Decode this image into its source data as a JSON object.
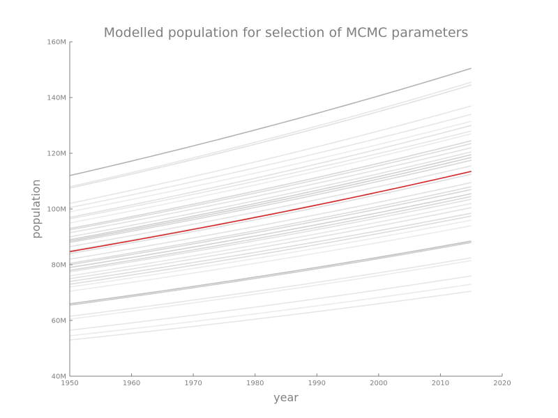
{
  "chart_data": {
    "type": "line",
    "title": "Modelled population for selection of MCMC parameters",
    "xlabel": "year",
    "ylabel": "population",
    "xlim": [
      1950,
      2020
    ],
    "ylim": [
      40000000,
      160000000
    ],
    "x_ticks": [
      "1950",
      "1960",
      "1970",
      "1980",
      "1990",
      "2000",
      "2010",
      "2020"
    ],
    "y_ticks": [
      "40M",
      "60M",
      "80M",
      "100M",
      "120M",
      "140M",
      "160M"
    ],
    "x_start": 1950,
    "x_end": 2015,
    "grid": false,
    "highlight_color": "#d62728",
    "series_color": "#9a9a9a",
    "series": [
      {
        "start": 112.0,
        "end": 150.5,
        "opacity": 0.75
      },
      {
        "start": 108.0,
        "end": 145.5,
        "opacity": 0.25
      },
      {
        "start": 107.5,
        "end": 144.5,
        "opacity": 0.3
      },
      {
        "start": 102.0,
        "end": 137.0,
        "opacity": 0.25
      },
      {
        "start": 100.5,
        "end": 134.0,
        "opacity": 0.25
      },
      {
        "start": 99.0,
        "end": 131.5,
        "opacity": 0.2
      },
      {
        "start": 97.0,
        "end": 130.0,
        "opacity": 0.3
      },
      {
        "start": 96.5,
        "end": 128.0,
        "opacity": 0.25
      },
      {
        "start": 95.0,
        "end": 127.0,
        "opacity": 0.2
      },
      {
        "start": 93.0,
        "end": 124.5,
        "opacity": 0.4
      },
      {
        "start": 92.5,
        "end": 123.5,
        "opacity": 0.35
      },
      {
        "start": 91.5,
        "end": 122.0,
        "opacity": 0.3
      },
      {
        "start": 90.0,
        "end": 120.5,
        "opacity": 0.3
      },
      {
        "start": 89.0,
        "end": 119.5,
        "opacity": 0.45
      },
      {
        "start": 88.5,
        "end": 118.5,
        "opacity": 0.45
      },
      {
        "start": 88.0,
        "end": 117.5,
        "opacity": 0.4
      },
      {
        "start": 86.5,
        "end": 115.5,
        "opacity": 0.3
      },
      {
        "start": 85.0,
        "end": 113.5,
        "opacity": 0.3
      },
      {
        "start": 84.0,
        "end": 112.5,
        "opacity": 0.35
      },
      {
        "start": 82.0,
        "end": 109.5,
        "opacity": 0.3
      },
      {
        "start": 80.5,
        "end": 108.0,
        "opacity": 0.35
      },
      {
        "start": 80.0,
        "end": 107.0,
        "opacity": 0.4
      },
      {
        "start": 79.0,
        "end": 105.5,
        "opacity": 0.45
      },
      {
        "start": 78.0,
        "end": 104.5,
        "opacity": 0.4
      },
      {
        "start": 77.5,
        "end": 103.5,
        "opacity": 0.3
      },
      {
        "start": 76.0,
        "end": 102.0,
        "opacity": 0.25
      },
      {
        "start": 75.0,
        "end": 100.5,
        "opacity": 0.3
      },
      {
        "start": 74.0,
        "end": 98.5,
        "opacity": 0.35
      },
      {
        "start": 73.0,
        "end": 97.5,
        "opacity": 0.35
      },
      {
        "start": 72.0,
        "end": 96.0,
        "opacity": 0.2
      },
      {
        "start": 70.5,
        "end": 94.0,
        "opacity": 0.2
      },
      {
        "start": 66.0,
        "end": 88.5,
        "opacity": 0.6
      },
      {
        "start": 65.5,
        "end": 88.0,
        "opacity": 0.5
      },
      {
        "start": 61.5,
        "end": 82.5,
        "opacity": 0.25
      },
      {
        "start": 60.5,
        "end": 81.5,
        "opacity": 0.2
      },
      {
        "start": 56.5,
        "end": 76.0,
        "opacity": 0.25
      },
      {
        "start": 54.5,
        "end": 73.0,
        "opacity": 0.2
      },
      {
        "start": 53.0,
        "end": 70.5,
        "opacity": 0.25
      }
    ],
    "highlight": {
      "start": 84.7,
      "end": 113.5
    }
  }
}
